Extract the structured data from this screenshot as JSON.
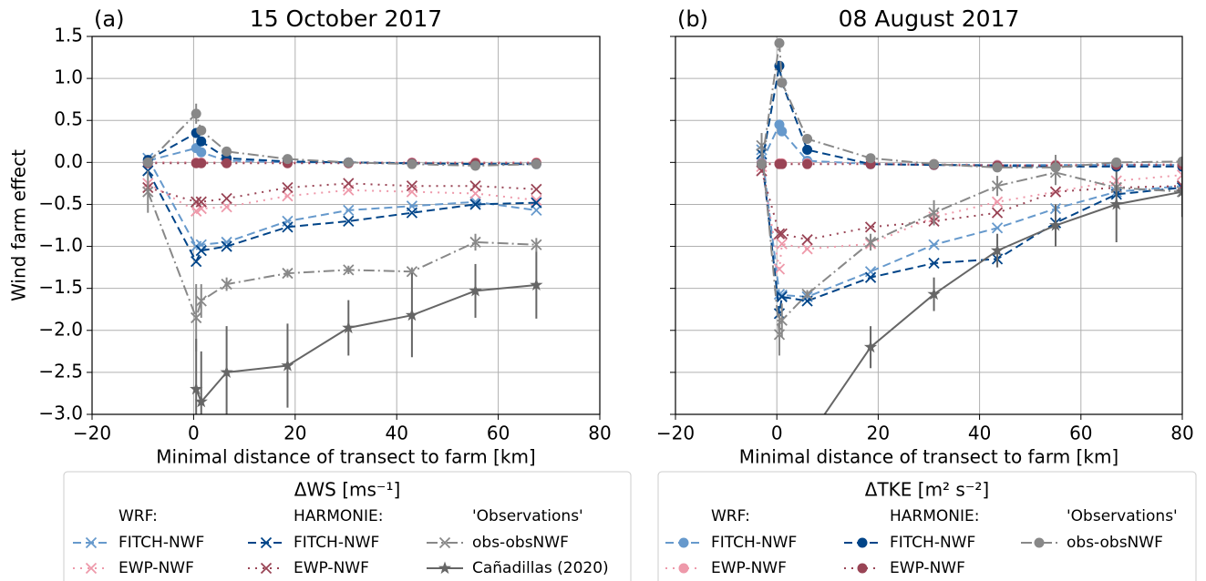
{
  "chart_data": [
    {
      "type": "line",
      "panel_label": "(a)",
      "title": "15 October 2017",
      "xlabel": "Minimal distance of transect to farm [km]",
      "ylabel": "Wind farm effect",
      "xlim": [
        -20,
        80
      ],
      "ylim": [
        -3,
        1.5
      ],
      "xticks": [
        {
          "value": -20,
          "label": "−20"
        },
        0,
        20,
        40,
        60,
        80
      ],
      "yticks": [
        {
          "value": -3,
          "label": "−3.0"
        },
        {
          "value": -2.5,
          "label": "−2.5"
        },
        {
          "value": -2,
          "label": "−2.0"
        },
        {
          "value": -1.5,
          "label": "−1.5"
        },
        {
          "value": -1,
          "label": "−1.0"
        },
        {
          "value": -0.5,
          "label": "−0.5"
        },
        {
          "value": 0,
          "label": "0.0"
        },
        0.5,
        {
          "value": 1,
          "label": "1.0"
        },
        1.5
      ],
      "ytick_labels": true,
      "grid": true,
      "legend": {
        "title": "ΔWS [ms⁻¹]",
        "headers": [
          "WRF:",
          "HARMONIE:",
          "'Observations'"
        ]
      },
      "series": [
        {
          "name": "FITCH-NWF",
          "color": "#6699cc",
          "linestyle": "dashed",
          "marker": "x",
          "x": [
            -9,
            0.5,
            1.5,
            6.5,
            18.5,
            30.5,
            43,
            55.5,
            67.5
          ],
          "values": [
            0.05,
            -1.0,
            -0.98,
            -0.95,
            -0.7,
            -0.57,
            -0.52,
            -0.47,
            -0.57
          ]
        },
        {
          "name": "EWP-NWF",
          "color": "#ee99aa",
          "linestyle": "dotted",
          "marker": "x",
          "x": [
            -9,
            0.5,
            1.5,
            6.5,
            18.5,
            30.5,
            43,
            55.5,
            67.5
          ],
          "values": [
            -0.25,
            -0.58,
            -0.55,
            -0.53,
            -0.4,
            -0.33,
            -0.35,
            -0.37,
            -0.45
          ]
        },
        {
          "name": "FITCH-NWF",
          "color": "#004488",
          "linestyle": "dashed",
          "marker": "x",
          "x": [
            -9,
            0.5,
            1.5,
            6.5,
            18.5,
            30.5,
            43,
            55.5,
            67.5
          ],
          "values": [
            -0.1,
            -1.18,
            -1.05,
            -1.0,
            -0.77,
            -0.7,
            -0.6,
            -0.5,
            -0.48
          ]
        },
        {
          "name": "EWP-NWF",
          "color": "#994455",
          "linestyle": "dotted",
          "marker": "x",
          "x": [
            -9,
            0.5,
            1.5,
            6.5,
            18.5,
            30.5,
            43,
            55.5,
            67.5
          ],
          "values": [
            -0.3,
            -0.47,
            -0.47,
            -0.43,
            -0.3,
            -0.25,
            -0.28,
            -0.28,
            -0.32
          ]
        },
        {
          "name": "obs-obsNWF",
          "color": "#888888",
          "linestyle": "dashdot",
          "marker": "x",
          "x": [
            -9,
            0.5,
            1.5,
            6.5,
            18.5,
            30.5,
            43,
            55.5,
            67.5
          ],
          "values": [
            -0.35,
            -1.85,
            -1.65,
            -1.45,
            -1.32,
            -1.28,
            -1.3,
            -0.95,
            -0.98
          ],
          "errors": [
            0.25,
            0.4,
            0.2,
            0.08,
            0.05,
            0.05,
            0.05,
            0.1,
            0.08
          ]
        },
        {
          "name": "Cañadillas (2020)",
          "color": "#666666",
          "linestyle": "solid",
          "marker": "*",
          "x": [
            0.5,
            1.5,
            6.5,
            18.5,
            30.5,
            43,
            55.5,
            67.5
          ],
          "values": [
            -2.7,
            -2.85,
            -2.5,
            -2.42,
            -1.97,
            -1.82,
            -1.53,
            -1.46
          ],
          "errors": [
            0.6,
            0.6,
            0.55,
            0.5,
            0.33,
            0.5,
            0.32,
            0.4
          ]
        },
        {
          "color": "#6699cc",
          "linestyle": "dashed",
          "marker": "o",
          "x": [
            -9,
            0.5,
            1.5,
            6.5,
            18.5,
            30.5,
            43,
            55.5,
            67.5
          ],
          "values": [
            0.02,
            0.17,
            0.12,
            0.02,
            0.0,
            0.0,
            -0.01,
            -0.02,
            -0.01
          ]
        },
        {
          "color": "#ee99aa",
          "linestyle": "dotted",
          "marker": "o",
          "x": [
            -9,
            0.5,
            1.5,
            6.5,
            18.5,
            30.5,
            43,
            55.5,
            67.5
          ],
          "values": [
            0.0,
            0.0,
            0.0,
            0.0,
            0.0,
            0.0,
            0.0,
            0.0,
            0.0
          ]
        },
        {
          "color": "#004488",
          "linestyle": "dashed",
          "marker": "o",
          "x": [
            -9,
            0.5,
            1.5,
            6.5,
            18.5,
            30.5,
            43,
            55.5,
            67.5
          ],
          "values": [
            0.03,
            0.35,
            0.25,
            0.05,
            0.01,
            0.0,
            -0.01,
            -0.02,
            -0.02
          ]
        },
        {
          "color": "#994455",
          "linestyle": "dotted",
          "marker": "o",
          "x": [
            -9,
            0.5,
            1.5,
            6.5,
            18.5,
            30.5,
            43,
            55.5,
            67.5
          ],
          "values": [
            -0.01,
            -0.01,
            -0.01,
            -0.01,
            -0.01,
            -0.01,
            -0.01,
            -0.01,
            -0.01
          ]
        },
        {
          "color": "#888888",
          "linestyle": "dashdot",
          "marker": "o",
          "x": [
            -9,
            0.5,
            1.5,
            6.5,
            18.5,
            30.5,
            43,
            55.5,
            67.5
          ],
          "values": [
            0.0,
            0.58,
            0.38,
            0.13,
            0.04,
            0.0,
            -0.02,
            -0.04,
            -0.02
          ],
          "errors": [
            0.05,
            0.12,
            0.05,
            0.03,
            0.02,
            0.02,
            0.02,
            0.03,
            0.02
          ]
        }
      ]
    },
    {
      "type": "line",
      "panel_label": "(b)",
      "title": "08 August 2017",
      "xlabel": "Minimal distance of transect to farm [km]",
      "xlim": [
        -20,
        80
      ],
      "ylim": [
        -3,
        1.5
      ],
      "xticks": [
        {
          "value": -20,
          "label": "−20"
        },
        0,
        20,
        40,
        60,
        80
      ],
      "yticks": [
        -3,
        -2.5,
        -2,
        -1.5,
        -1,
        -0.5,
        0,
        0.5,
        1,
        1.5
      ],
      "ytick_labels": false,
      "grid": true,
      "legend": {
        "title": "ΔTKE [m² s⁻²]",
        "headers": [
          "WRF:",
          "HARMONIE:",
          "'Observations'"
        ]
      },
      "series": [
        {
          "color": "#6699cc",
          "linestyle": "dashed",
          "marker": "x",
          "x": [
            -3,
            0.5,
            1,
            6,
            18.5,
            31,
            43.5,
            55,
            67,
            80
          ],
          "values": [
            0.15,
            -1.57,
            -1.58,
            -1.6,
            -1.3,
            -0.98,
            -0.78,
            -0.55,
            -0.35,
            -0.28
          ]
        },
        {
          "color": "#ee99aa",
          "linestyle": "dotted",
          "marker": "x",
          "x": [
            -3,
            0.5,
            1,
            6,
            18.5,
            31,
            43.5,
            55,
            67,
            80
          ],
          "values": [
            -0.05,
            -1.27,
            -0.97,
            -1.03,
            -0.97,
            -0.65,
            -0.47,
            -0.35,
            -0.22,
            -0.15
          ]
        },
        {
          "color": "#004488",
          "linestyle": "dashed",
          "marker": "x",
          "x": [
            -3,
            0.5,
            1,
            6,
            18.5,
            31,
            43.5,
            55,
            67,
            80
          ],
          "values": [
            0.1,
            -1.8,
            -1.6,
            -1.65,
            -1.37,
            -1.2,
            -1.15,
            -0.72,
            -0.38,
            -0.3
          ]
        },
        {
          "color": "#994455",
          "linestyle": "dotted",
          "marker": "x",
          "x": [
            -3,
            0.5,
            1,
            6,
            18.5,
            31,
            43.5,
            55,
            67,
            80
          ],
          "values": [
            -0.1,
            -0.85,
            -0.85,
            -0.92,
            -0.77,
            -0.7,
            -0.6,
            -0.35,
            -0.3,
            -0.28
          ]
        },
        {
          "color": "#888888",
          "linestyle": "dashdot",
          "marker": "x",
          "x": [
            -3,
            0.5,
            1,
            6,
            18.5,
            31,
            43.5,
            55,
            67,
            80
          ],
          "values": [
            0.2,
            -2.05,
            -1.88,
            -1.57,
            -0.95,
            -0.6,
            -0.28,
            -0.12,
            -0.3,
            -0.35
          ],
          "errors": [
            0.15,
            0.25,
            0.2,
            0.05,
            0.1,
            0.15,
            0.12,
            0.15,
            0.1,
            0.1
          ]
        },
        {
          "color": "#666666",
          "linestyle": "solid",
          "marker": "*",
          "x": [
            6,
            18.5,
            31,
            43.5,
            55,
            67,
            80
          ],
          "values": [
            -3.3,
            -2.2,
            -1.57,
            -1.05,
            -0.75,
            -0.5,
            -0.35
          ],
          "errors": [
            0.25,
            0.25,
            0.2,
            0.2,
            0.25,
            0.45,
            0.3
          ]
        },
        {
          "name": "FITCH-NWF",
          "color": "#6699cc",
          "linestyle": "dashed",
          "marker": "o",
          "x": [
            -3,
            0.5,
            1,
            6,
            18.5,
            31,
            43.5,
            55,
            67,
            80
          ],
          "values": [
            0.0,
            0.45,
            0.37,
            0.02,
            -0.02,
            -0.03,
            -0.03,
            -0.03,
            -0.03,
            -0.03
          ]
        },
        {
          "name": "EWP-NWF",
          "color": "#ee99aa",
          "linestyle": "dotted",
          "marker": "o",
          "x": [
            -3,
            0.5,
            1,
            6,
            18.5,
            31,
            43.5,
            55,
            67,
            80
          ],
          "values": [
            -0.01,
            -0.01,
            -0.01,
            -0.01,
            -0.01,
            -0.02,
            -0.03,
            -0.03,
            -0.02,
            -0.02
          ]
        },
        {
          "name": "FITCH-NWF",
          "color": "#004488",
          "linestyle": "dashed",
          "marker": "o",
          "x": [
            -3,
            0.5,
            1,
            6,
            18.5,
            31,
            43.5,
            55,
            67,
            80
          ],
          "values": [
            -0.02,
            1.15,
            0.95,
            0.15,
            -0.02,
            -0.03,
            -0.04,
            -0.05,
            -0.05,
            -0.05
          ]
        },
        {
          "name": "EWP-NWF",
          "color": "#994455",
          "linestyle": "dotted",
          "marker": "o",
          "x": [
            -3,
            0.5,
            1,
            6,
            18.5,
            31,
            43.5,
            55,
            67,
            80
          ],
          "values": [
            -0.02,
            -0.02,
            -0.02,
            -0.02,
            -0.02,
            -0.03,
            -0.04,
            -0.04,
            -0.03,
            -0.03
          ]
        },
        {
          "name": "obs-obsNWF",
          "color": "#888888",
          "linestyle": "dashdot",
          "marker": "o",
          "x": [
            -3,
            0.5,
            1,
            6,
            18.5,
            31,
            43.5,
            55,
            67,
            80
          ],
          "values": [
            -0.02,
            1.42,
            0.95,
            0.28,
            0.05,
            -0.02,
            -0.06,
            -0.06,
            0.0,
            0.01
          ],
          "errors": [
            0.05,
            0.05,
            0.05,
            0.03,
            0.02,
            0.02,
            0.02,
            0.15,
            0.05,
            0.03
          ]
        }
      ]
    }
  ]
}
